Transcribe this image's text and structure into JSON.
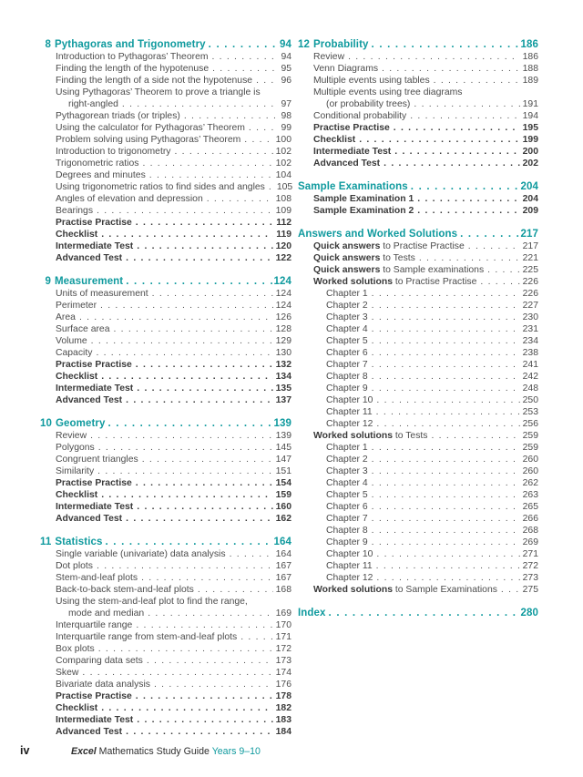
{
  "accent_color": "#0f9a9e",
  "toc": {
    "left_sections": [
      {
        "number": "8",
        "title": "Pythagoras and Trigonometry",
        "page": "94",
        "items": [
          {
            "label": "Introduction to Pythagoras’ Theorem",
            "page": "94"
          },
          {
            "label": "Finding the length of the hypotenuse",
            "page": "95"
          },
          {
            "label": "Finding the length of a side not the hypotenuse",
            "page": "96"
          },
          {
            "label": "Using Pythagoras’ Theorem to prove a triangle is",
            "page": null
          },
          {
            "label": "right-angled",
            "page": "97",
            "indent": 2
          },
          {
            "label": "Pythagorean triads (or triples)",
            "page": "98"
          },
          {
            "label": "Using the calculator for Pythagoras’ Theorem",
            "page": "99"
          },
          {
            "label": "Problem solving using Pythagoras’ Theorem",
            "page": "100"
          },
          {
            "label": "Introduction to trigonometry",
            "page": "102"
          },
          {
            "label": "Trigonometric ratios",
            "page": "102"
          },
          {
            "label": "Degrees and minutes",
            "page": "104"
          },
          {
            "label": "Using trigonometric ratios to find sides and angles",
            "page": "105"
          },
          {
            "label": "Angles of elevation and depression",
            "page": "108"
          },
          {
            "label": "Bearings",
            "page": "109"
          },
          {
            "label": "Practise Practise",
            "page": "112",
            "bold": true
          },
          {
            "label": "Checklist",
            "page": "119",
            "bold": true
          },
          {
            "label": "Intermediate Test",
            "page": "120",
            "bold": true
          },
          {
            "label": "Advanced Test",
            "page": "122",
            "bold": true
          }
        ]
      },
      {
        "number": "9",
        "title": "Measurement",
        "page": "124",
        "items": [
          {
            "label": "Units of measurement",
            "page": "124"
          },
          {
            "label": "Perimeter",
            "page": "124"
          },
          {
            "label": "Area",
            "page": "126"
          },
          {
            "label": "Surface area",
            "page": "128"
          },
          {
            "label": "Volume",
            "page": "129"
          },
          {
            "label": "Capacity",
            "page": "130"
          },
          {
            "label": "Practise Practise",
            "page": "132",
            "bold": true
          },
          {
            "label": "Checklist",
            "page": "134",
            "bold": true
          },
          {
            "label": "Intermediate Test",
            "page": "135",
            "bold": true
          },
          {
            "label": "Advanced Test",
            "page": "137",
            "bold": true
          }
        ]
      },
      {
        "number": "10",
        "title": "Geometry",
        "page": "139",
        "items": [
          {
            "label": "Review",
            "page": "139"
          },
          {
            "label": "Polygons",
            "page": "145"
          },
          {
            "label": "Congruent triangles",
            "page": "147"
          },
          {
            "label": "Similarity",
            "page": "151"
          },
          {
            "label": "Practise Practise",
            "page": "154",
            "bold": true
          },
          {
            "label": "Checklist",
            "page": "159",
            "bold": true
          },
          {
            "label": "Intermediate Test",
            "page": "160",
            "bold": true
          },
          {
            "label": "Advanced Test",
            "page": "162",
            "bold": true
          }
        ]
      },
      {
        "number": "11",
        "title": "Statistics",
        "page": "164",
        "items": [
          {
            "label": "Single variable (univariate) data analysis",
            "page": "164"
          },
          {
            "label": "Dot plots",
            "page": "167"
          },
          {
            "label": "Stem-and-leaf plots",
            "page": "167"
          },
          {
            "label": "Back-to-back stem-and-leaf plots",
            "page": "168"
          },
          {
            "label": "Using the stem-and-leaf plot to find the range,",
            "page": null
          },
          {
            "label": "mode and median",
            "page": "169",
            "indent": 2
          },
          {
            "label": "Interquartile range",
            "page": "170"
          },
          {
            "label": "Interquartile range from stem-and-leaf plots",
            "page": "171"
          },
          {
            "label": "Box plots",
            "page": "172"
          },
          {
            "label": "Comparing data sets",
            "page": "173"
          },
          {
            "label": "Skew",
            "page": "174"
          },
          {
            "label": "Bivariate data analysis",
            "page": "176"
          },
          {
            "label": "Practise Practise",
            "page": "178",
            "bold": true
          },
          {
            "label": "Checklist",
            "page": "182",
            "bold": true
          },
          {
            "label": "Intermediate Test",
            "page": "183",
            "bold": true
          },
          {
            "label": "Advanced Test",
            "page": "184",
            "bold": true
          }
        ]
      }
    ],
    "right_sections": [
      {
        "number": "12",
        "title": "Probability",
        "page": "186",
        "items": [
          {
            "label": "Review",
            "page": "186"
          },
          {
            "label": "Venn Diagrams",
            "page": "188"
          },
          {
            "label": "Multiple events using tables",
            "page": "189"
          },
          {
            "label": "Multiple events using tree diagrams",
            "page": null
          },
          {
            "label": "(or probability trees)",
            "page": "191",
            "indent": 2
          },
          {
            "label": "Conditional probability",
            "page": "194"
          },
          {
            "label": "Practise Practise",
            "page": "195",
            "bold": true
          },
          {
            "label": "Checklist",
            "page": "199",
            "bold": true
          },
          {
            "label": "Intermediate Test",
            "page": "200",
            "bold": true
          },
          {
            "label": "Advanced Test",
            "page": "202",
            "bold": true
          }
        ]
      },
      {
        "number": null,
        "title": "Sample Examinations",
        "page": "204",
        "items": [
          {
            "label": "Sample Examination 1",
            "page": "204",
            "bold": true
          },
          {
            "label": "Sample Examination 2",
            "page": "209",
            "bold": true
          }
        ]
      },
      {
        "number": null,
        "title": "Answers and Worked Solutions",
        "page": "217",
        "items": [
          {
            "prefix": "Quick answers",
            "label": " to Practise Practise",
            "page": "217"
          },
          {
            "prefix": "Quick answers",
            "label": " to Tests",
            "page": "221"
          },
          {
            "prefix": "Quick answers",
            "label": " to Sample examinations",
            "page": "225"
          },
          {
            "prefix": "Worked solutions",
            "label": " to Practise Practise",
            "page": "226"
          },
          {
            "label": "Chapter 1",
            "page": "226",
            "indent": 2
          },
          {
            "label": "Chapter 2",
            "page": "227",
            "indent": 2
          },
          {
            "label": "Chapter 3",
            "page": "230",
            "indent": 2
          },
          {
            "label": "Chapter 4",
            "page": "231",
            "indent": 2
          },
          {
            "label": "Chapter 5",
            "page": "234",
            "indent": 2
          },
          {
            "label": "Chapter 6",
            "page": "238",
            "indent": 2
          },
          {
            "label": "Chapter 7",
            "page": "241",
            "indent": 2
          },
          {
            "label": "Chapter 8",
            "page": "242",
            "indent": 2
          },
          {
            "label": "Chapter 9",
            "page": "248",
            "indent": 2
          },
          {
            "label": "Chapter 10",
            "page": "250",
            "indent": 2
          },
          {
            "label": "Chapter 11",
            "page": "253",
            "indent": 2
          },
          {
            "label": "Chapter 12",
            "page": "256",
            "indent": 2
          },
          {
            "prefix": "Worked solutions",
            "label": " to Tests",
            "page": "259"
          },
          {
            "label": "Chapter 1",
            "page": "259",
            "indent": 2
          },
          {
            "label": "Chapter 2",
            "page": "260",
            "indent": 2
          },
          {
            "label": "Chapter 3",
            "page": "260",
            "indent": 2
          },
          {
            "label": "Chapter 4",
            "page": "262",
            "indent": 2
          },
          {
            "label": "Chapter 5",
            "page": "263",
            "indent": 2
          },
          {
            "label": "Chapter 6",
            "page": "265",
            "indent": 2
          },
          {
            "label": "Chapter 7",
            "page": "266",
            "indent": 2
          },
          {
            "label": "Chapter 8",
            "page": "268",
            "indent": 2
          },
          {
            "label": "Chapter 9",
            "page": "269",
            "indent": 2
          },
          {
            "label": "Chapter 10",
            "page": "271",
            "indent": 2
          },
          {
            "label": "Chapter 11",
            "page": "272",
            "indent": 2
          },
          {
            "label": "Chapter 12",
            "page": "273",
            "indent": 2
          },
          {
            "prefix": "Worked solutions",
            "label": " to Sample Examinations",
            "page": "275"
          }
        ]
      },
      {
        "number": null,
        "title": "Index",
        "page": "280",
        "items": []
      }
    ]
  },
  "footer": {
    "folio": "iv",
    "title_brand": "Excel",
    "title_rest": " Mathematics Study Guide ",
    "title_accent": "Years 9–10"
  }
}
